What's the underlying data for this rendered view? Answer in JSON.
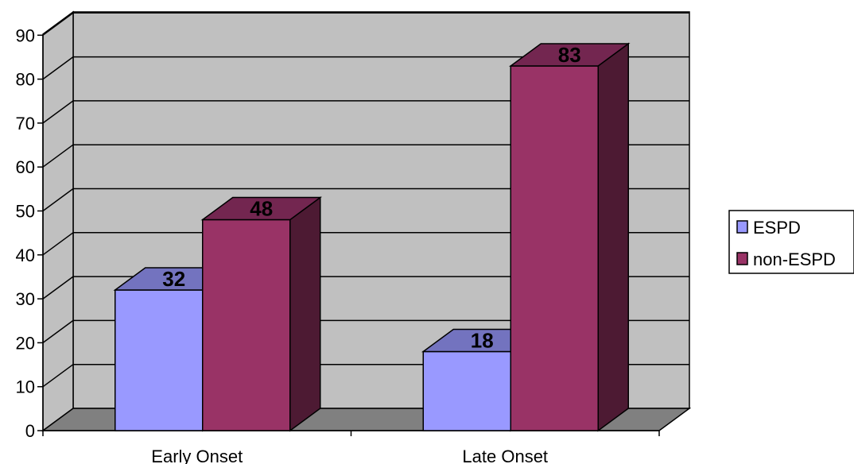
{
  "chart_data": {
    "type": "bar",
    "categories": [
      "Early Onset",
      "Late Onset"
    ],
    "series": [
      {
        "name": "ESPD",
        "values": [
          32,
          18
        ],
        "color": "#9999ff",
        "top_color": "#7373bf",
        "side_color": "#4d4d80"
      },
      {
        "name": "non-ESPD",
        "values": [
          48,
          83
        ],
        "color": "#993366",
        "top_color": "#732650",
        "side_color": "#4d1a33"
      }
    ],
    "ylim": [
      0,
      90
    ],
    "yticks": [
      "0",
      "10",
      "20",
      "30",
      "40",
      "50",
      "60",
      "70",
      "80",
      "90"
    ],
    "grid": true,
    "legend_position": "right",
    "wall_color": "#c0c0c0",
    "floor_color": "#808080"
  }
}
